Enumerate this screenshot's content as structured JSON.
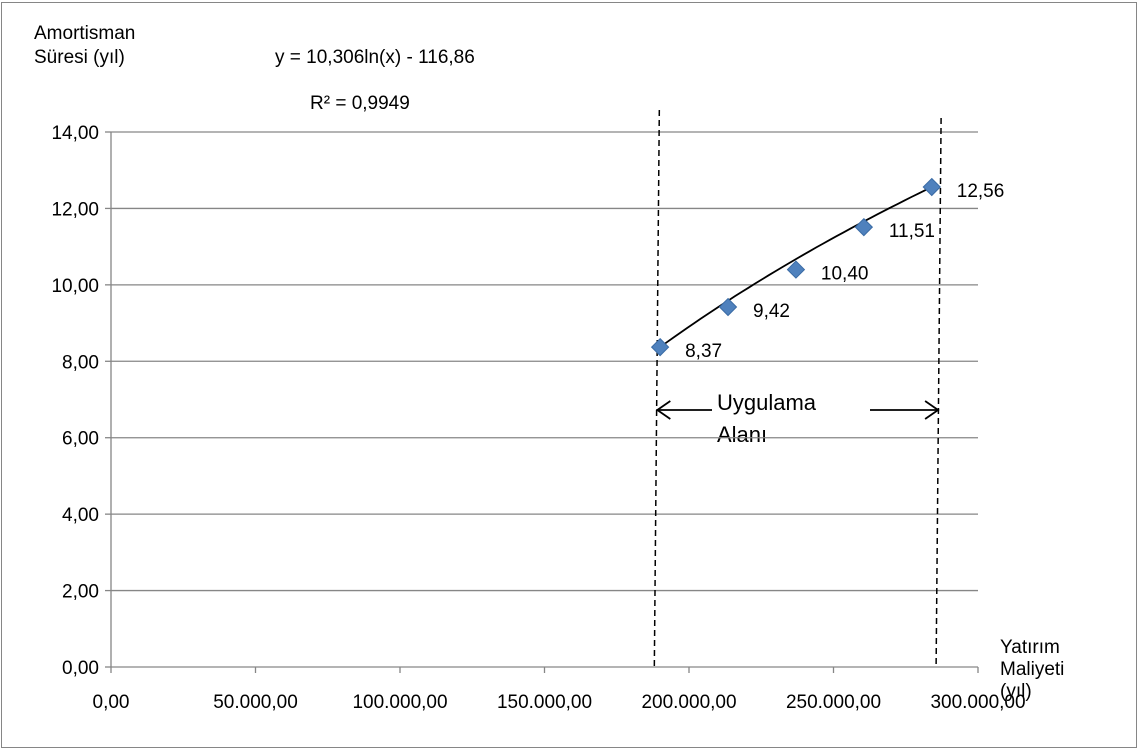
{
  "chart_data": {
    "type": "scatter",
    "xlabel": [
      "Yatırım",
      "Maliyeti",
      "(yıl)"
    ],
    "ylabel": [
      "Amortisman",
      "Süresi (yıl)"
    ],
    "equation": "y = 10,306ln(x) - 116,86",
    "r_squared": "R² = 0,9949",
    "xlim": [
      0,
      300000
    ],
    "ylim": [
      0,
      14
    ],
    "x_ticks": [
      0,
      50000,
      100000,
      150000,
      200000,
      250000,
      300000
    ],
    "x_tick_labels": [
      "0,00",
      "50.000,00",
      "100.000,00",
      "150.000,00",
      "200.000,00",
      "250.000,00",
      "300.000,00"
    ],
    "y_ticks": [
      0,
      2,
      4,
      6,
      8,
      10,
      12,
      14
    ],
    "y_tick_labels": [
      "0,00",
      "2,00",
      "4,00",
      "6,00",
      "8,00",
      "10,00",
      "12,00",
      "14,00"
    ],
    "grid": "horizontal",
    "series": [
      {
        "marker": "diamond",
        "color": "#4F81BD",
        "x": [
          190000,
          213500,
          237000,
          260500,
          284000
        ],
        "values": [
          8.37,
          9.42,
          10.4,
          11.51,
          12.56
        ],
        "labels": [
          "8,37",
          "9,42",
          "10,40",
          "11,51",
          "12,56"
        ]
      }
    ],
    "trendline": {
      "type": "logarithmic",
      "a": 10.306,
      "b": -116.86,
      "color": "#000000"
    },
    "region": {
      "label": [
        "Uygulama",
        "Alanı"
      ],
      "x_range": [
        188000,
        285500
      ]
    }
  }
}
